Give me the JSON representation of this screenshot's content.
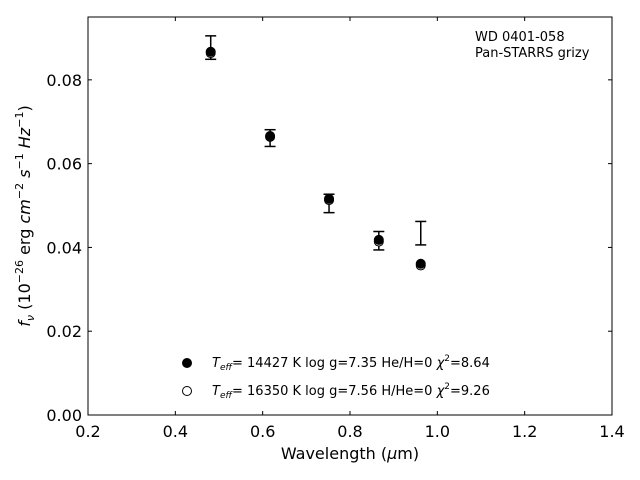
{
  "chart_data": {
    "type": "scatter",
    "annotation": [
      "WD 0401-058",
      "Pan-STARRS grizy"
    ],
    "xlabel": {
      "text": "Wavelength (",
      "sym": "μ",
      "rest": "m)"
    },
    "ylabel": {
      "f": "f",
      "sub": "ν",
      "open": " (10",
      "exp1": "−26",
      "erg": " erg ",
      "cm": "cm",
      "exp2": "−2",
      "s": " s",
      "exp3": "−1",
      "hz": " Hz",
      "exp4": "−1",
      "close": ")"
    },
    "xlim": [
      0.2,
      1.4
    ],
    "ylim": [
      0.0,
      0.095
    ],
    "x_ticks": [
      0.2,
      0.4,
      0.6,
      0.8,
      1.0,
      1.2,
      1.4
    ],
    "x_tick_labels": [
      "0.2",
      "0.4",
      "0.6",
      "0.8",
      "1.0",
      "1.2",
      "1.4"
    ],
    "y_ticks": [
      0.0,
      0.02,
      0.04,
      0.06,
      0.08
    ],
    "y_tick_labels": [
      "0.00",
      "0.02",
      "0.04",
      "0.06",
      "0.08"
    ],
    "grid": false,
    "legend_position": "lower-center",
    "observed": {
      "x": [
        0.481,
        0.617,
        0.752,
        0.866,
        0.962
      ],
      "y": [
        0.0877,
        0.0661,
        0.0505,
        0.0416,
        0.0434
      ],
      "yerr": [
        0.0028,
        0.002,
        0.0022,
        0.0022,
        0.0028
      ]
    },
    "series": [
      {
        "name": "He/H=0",
        "marker": "filled-circle",
        "x": [
          0.481,
          0.617,
          0.752,
          0.866,
          0.962
        ],
        "y": [
          0.0867,
          0.0666,
          0.0516,
          0.0418,
          0.0361
        ],
        "legend": {
          "pre": "T",
          "sub": "eff",
          "text": "= 14427 K  log g=7.35  He/H=0  ",
          "chi": "χ",
          "sup": "2",
          "post": "=8.64"
        }
      },
      {
        "name": "H/He=0",
        "marker": "open-circle",
        "x": [
          0.481,
          0.617,
          0.752,
          0.866,
          0.962
        ],
        "y": [
          0.0864,
          0.0664,
          0.0513,
          0.0414,
          0.0357
        ],
        "legend": {
          "pre": "T",
          "sub": "eff",
          "text": "= 16350 K  log g=7.56  H/He=0  ",
          "chi": "χ",
          "sup": "2",
          "post": "=9.26"
        }
      }
    ]
  },
  "colors": {
    "marker": "#000000",
    "axes": "#000000",
    "background": "#ffffff"
  }
}
